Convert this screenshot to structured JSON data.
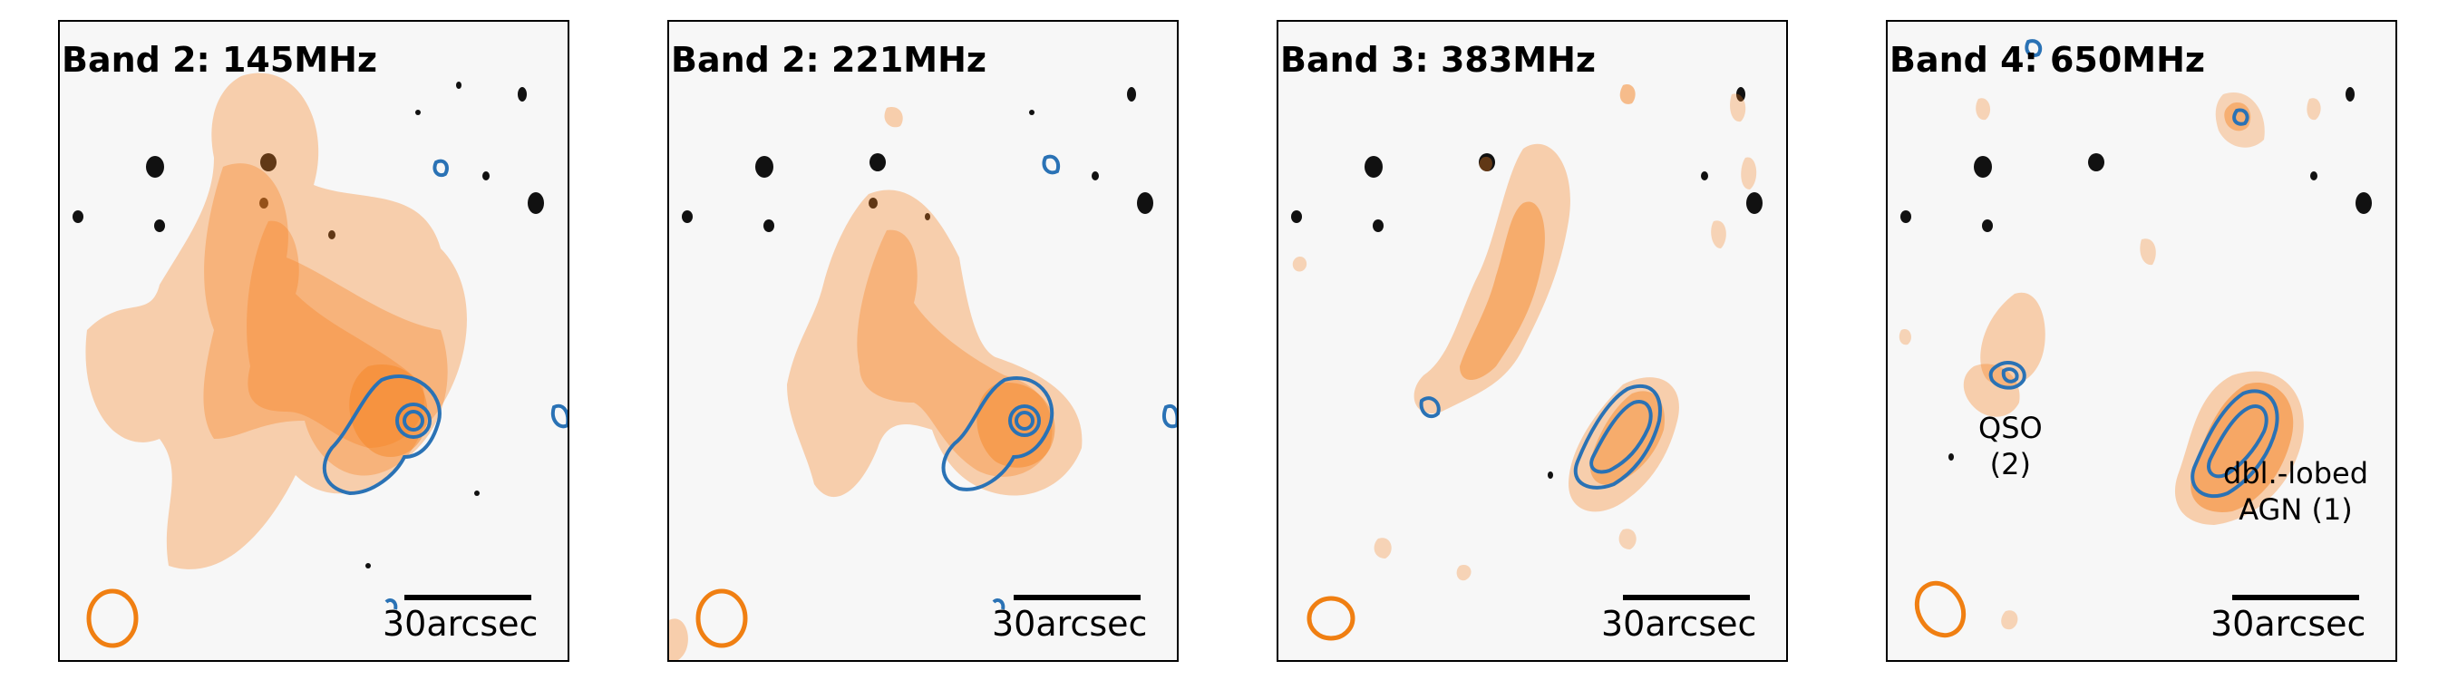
{
  "panels": [
    {
      "title": "Band 2: 145MHz",
      "scale_label": "30arcsec"
    },
    {
      "title": "Band 2: 221MHz",
      "scale_label": "30arcsec"
    },
    {
      "title": "Band 3: 383MHz",
      "scale_label": "30arcsec"
    },
    {
      "title": "Band 4: 650MHz",
      "scale_label": "30arcsec"
    }
  ],
  "annotations": {
    "qso_line1": "QSO",
    "qso_line2": "(2)",
    "agn_line1": "dbl.-lobed",
    "agn_line2": "AGN (1)"
  },
  "colors": {
    "radio_contour_fill": "#f58220",
    "optical_contour": "#2a72b5",
    "beam": "#f07f12",
    "background": "#f7f7f7"
  }
}
